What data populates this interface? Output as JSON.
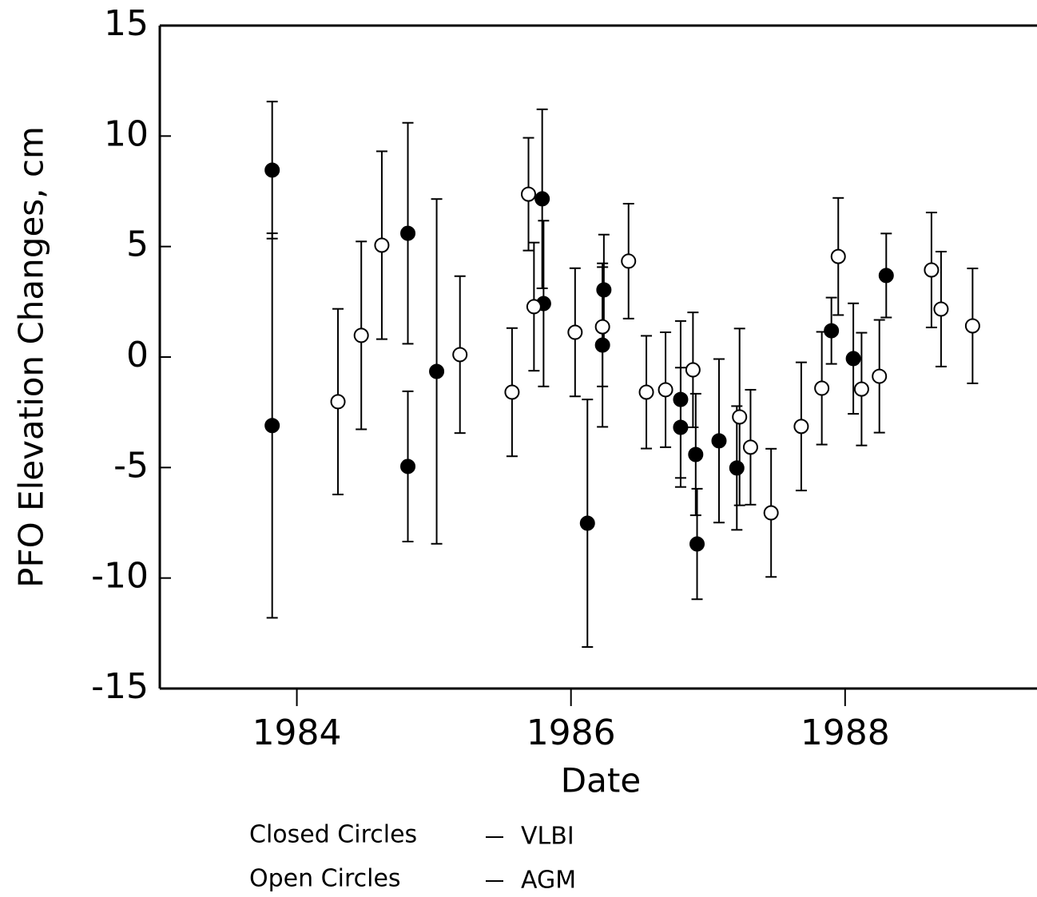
{
  "chart_data": {
    "type": "scatter",
    "xlabel": "Date",
    "ylabel": "PFO Elevation Changes, cm",
    "xlim": [
      1983,
      1989.4
    ],
    "xticks": [
      1984,
      1986,
      1988
    ],
    "ylim": [
      -15,
      15
    ],
    "yticks": [
      -15,
      -10,
      -5,
      0,
      5,
      10,
      15
    ],
    "series": [
      {
        "name": "VLBI",
        "legend_label": "Closed Circles",
        "color": "#000000",
        "filled": true,
        "x": [
          1983.82,
          1983.82,
          1984.81,
          1984.81,
          1985.02,
          1985.79,
          1985.8,
          1986.12,
          1986.24,
          1986.23,
          1986.8,
          1986.8,
          1986.91,
          1986.92,
          1987.08,
          1987.21,
          1987.9,
          1988.06,
          1988.3
        ],
        "values": [
          8.46,
          -3.1,
          5.6,
          -4.95,
          -0.65,
          7.16,
          2.42,
          -7.52,
          3.04,
          0.54,
          -1.92,
          -3.18,
          -4.41,
          -8.46,
          -3.79,
          -5.02,
          1.19,
          -0.07,
          3.69
        ],
        "errors": [
          3.1,
          8.7,
          5.0,
          3.4,
          7.8,
          4.05,
          3.75,
          5.6,
          2.5,
          3.7,
          3.55,
          2.7,
          2.75,
          2.5,
          3.7,
          2.8,
          1.5,
          2.5,
          1.9
        ]
      },
      {
        "name": "AGM",
        "legend_label": "Open Circles",
        "color": "#000000",
        "filled": false,
        "x": [
          1984.3,
          1984.47,
          1984.62,
          1985.19,
          1985.57,
          1985.69,
          1985.73,
          1986.03,
          1986.23,
          1986.42,
          1986.55,
          1986.69,
          1986.89,
          1987.23,
          1987.31,
          1987.46,
          1987.68,
          1987.83,
          1987.95,
          1988.12,
          1988.25,
          1988.63,
          1988.7,
          1988.93
        ],
        "values": [
          -2.02,
          0.98,
          5.06,
          0.11,
          -1.59,
          7.37,
          2.28,
          1.12,
          1.37,
          4.34,
          -1.59,
          -1.48,
          -0.58,
          -2.71,
          -4.08,
          -7.05,
          -3.14,
          -1.41,
          4.55,
          -1.45,
          -0.87,
          3.94,
          2.17,
          1.41
        ],
        "errors": [
          4.2,
          4.25,
          4.25,
          3.55,
          2.9,
          2.55,
          2.9,
          2.9,
          2.7,
          2.6,
          2.55,
          2.6,
          2.6,
          4.0,
          2.6,
          2.9,
          2.9,
          2.55,
          2.65,
          2.55,
          2.55,
          2.6,
          2.6,
          2.6
        ]
      }
    ]
  }
}
